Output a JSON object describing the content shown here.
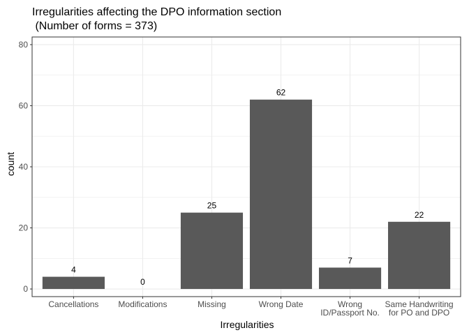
{
  "chart_data": {
    "type": "bar",
    "title_lines": [
      "Irregularities affecting the DPO information section",
      " (Number of forms = 373)"
    ],
    "xlabel": "Irregularities",
    "ylabel": "count",
    "categories": [
      [
        "Cancellations"
      ],
      [
        "Modifications"
      ],
      [
        "Missing"
      ],
      [
        "Wrong Date"
      ],
      [
        "Wrong",
        "ID/Passport No."
      ],
      [
        "Same Handwriting",
        "for PO and DPO"
      ]
    ],
    "values": [
      4,
      0,
      25,
      62,
      7,
      22
    ],
    "data_labels": [
      "4",
      "0",
      "25",
      "62",
      "7",
      "22"
    ],
    "ylim": [
      -2.5,
      82.5
    ],
    "yticks": [
      0,
      20,
      40,
      60,
      80
    ],
    "grid": true,
    "bar_color": "#595959",
    "grid_color": "#ebebeb",
    "border_color": "#333333"
  }
}
